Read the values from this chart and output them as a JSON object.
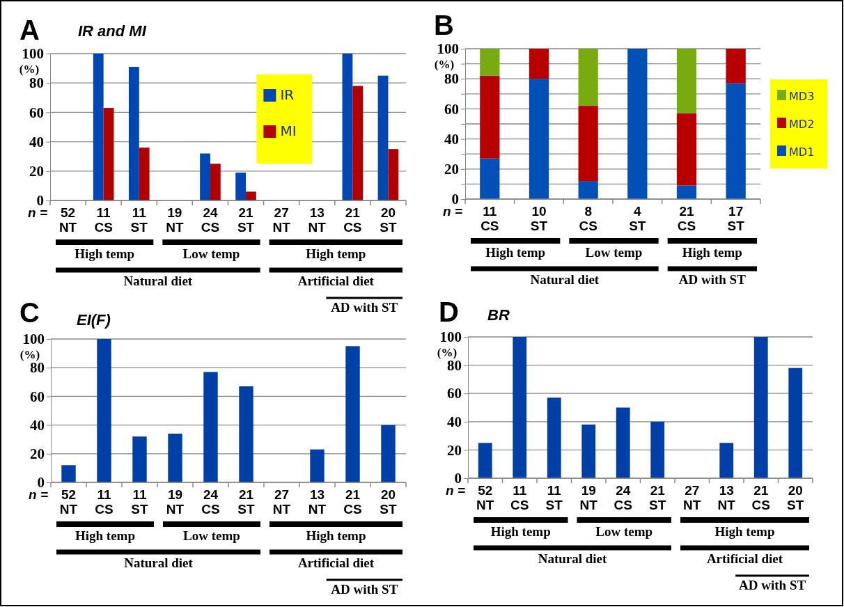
{
  "chart_data": [
    {
      "type": "bar",
      "title": "IR and MI",
      "ylabel": "(%)",
      "categories": [
        "52 NT",
        "11 CS",
        "11 ST",
        "19 NT",
        "24 CS",
        "21 ST",
        "27 NT",
        "13 NT",
        "21 CS",
        "20 ST"
      ],
      "series": [
        {
          "name": "IR",
          "color": "#0047b3",
          "values": [
            0,
            100,
            91,
            0,
            32,
            19,
            0,
            0,
            100,
            85
          ]
        },
        {
          "name": "MI",
          "color": "#b00000",
          "values": [
            0,
            63,
            36,
            0,
            25,
            6,
            0,
            0,
            78,
            35
          ]
        }
      ],
      "ylim": [
        0,
        100
      ],
      "yticks": [
        0,
        20,
        40,
        60,
        80,
        100
      ],
      "grid": "y",
      "legend": "top right",
      "annotations": [
        "A",
        "n =",
        "High temp",
        "Low temp",
        "High temp",
        "Natural diet",
        "Artificial diet",
        "AD with ST"
      ]
    },
    {
      "type": "bar",
      "stacked": true,
      "ylabel": "(%)",
      "categories": [
        "11 CS",
        "10 ST",
        "8 CS",
        "4 ST",
        "21 CS",
        "17 ST"
      ],
      "series": [
        {
          "name": "MD1",
          "color": "#0050b8",
          "values": [
            27,
            80,
            12,
            100,
            9,
            77
          ]
        },
        {
          "name": "MD2",
          "color": "#b80000",
          "values": [
            55,
            20,
            50,
            0,
            48,
            23
          ]
        },
        {
          "name": "MD3",
          "color": "#78ab10",
          "values": [
            18,
            0,
            38,
            0,
            43,
            0
          ]
        }
      ],
      "ylim": [
        0,
        100
      ],
      "yticks": [
        0,
        {
          "value": 10,
          "label": null
        },
        20,
        {
          "value": 30,
          "label": null
        },
        40,
        {
          "value": 50,
          "label": null
        },
        60,
        {
          "value": 70,
          "label": null
        },
        80,
        {
          "value": 90,
          "label": null
        },
        100
      ],
      "grid": "y",
      "legend": "right",
      "annotations": [
        "B",
        "n =",
        "High temp",
        "Low temp",
        "High temp",
        "Natural diet",
        "AD with ST"
      ]
    },
    {
      "type": "bar",
      "title": "EI(F)",
      "ylabel": "(%)",
      "categories": [
        "52 NT",
        "11 CS",
        "11 ST",
        "19 NT",
        "24 CS",
        "21 ST",
        "27 NT",
        "13 NT",
        "21 CS",
        "20 ST"
      ],
      "values": [
        12,
        100,
        32,
        34,
        77,
        67,
        0,
        23,
        95,
        40
      ],
      "color": "#003fa6",
      "ylim": [
        0,
        100
      ],
      "yticks": [
        0,
        20,
        40,
        60,
        80,
        100
      ],
      "grid": "y",
      "annotations": [
        "C",
        "n =",
        "High temp",
        "Low temp",
        "High temp",
        "Natural diet",
        "Artificial diet",
        "AD with ST"
      ]
    },
    {
      "type": "bar",
      "title": "BR",
      "ylabel": "(%)",
      "categories": [
        "52 NT",
        "11 CS",
        "11 ST",
        "19 NT",
        "24 CS",
        "21 ST",
        "27 NT",
        "13 NT",
        "21 CS",
        "20 ST"
      ],
      "values": [
        25,
        100,
        57,
        38,
        50,
        40,
        0,
        25,
        100,
        78
      ],
      "color": "#003fa6",
      "ylim": [
        0,
        100
      ],
      "yticks": [
        0,
        20,
        40,
        60,
        80,
        100
      ],
      "grid": "y",
      "annotations": [
        "D",
        "n =",
        "High temp",
        "Low temp",
        "High temp",
        "Natural diet",
        "Artificial diet",
        "AD with ST"
      ]
    }
  ]
}
